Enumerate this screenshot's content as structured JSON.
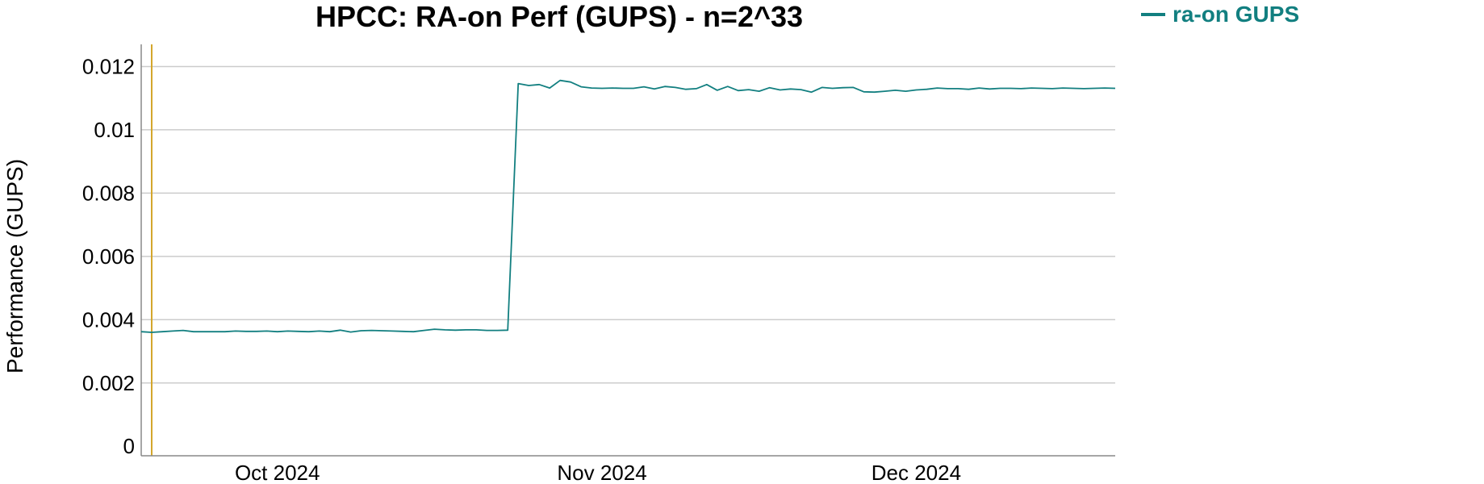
{
  "chart_data": {
    "type": "line",
    "title": "HPCC: RA-on Perf (GUPS) - n=2^33",
    "xlabel": "",
    "ylabel": "Performance (GUPS)",
    "xlim": [
      "2024-09-18",
      "2024-12-20"
    ],
    "ylim": [
      -0.0003,
      0.0127
    ],
    "yticks": [
      0,
      0.002,
      0.004,
      0.006,
      0.008,
      0.01,
      0.012
    ],
    "ytick_labels": [
      "0",
      "0.002",
      "0.004",
      "0.006",
      "0.008",
      "0.01",
      "0.012"
    ],
    "xticks": [
      "2024-10-01",
      "2024-11-01",
      "2024-12-01"
    ],
    "xtick_labels": [
      "Oct 2024",
      "Nov 2024",
      "Dec 2024"
    ],
    "grid": true,
    "legend": "top-right",
    "vertical_marker": {
      "x": "2024-09-19",
      "color": "#d4a62a"
    },
    "series": [
      {
        "name": "ra-on GUPS",
        "color": "#127f80",
        "x": [
          "2024-09-18",
          "2024-09-19",
          "2024-09-20",
          "2024-09-21",
          "2024-09-22",
          "2024-09-23",
          "2024-09-24",
          "2024-09-25",
          "2024-09-26",
          "2024-09-27",
          "2024-09-28",
          "2024-09-29",
          "2024-09-30",
          "2024-10-01",
          "2024-10-02",
          "2024-10-03",
          "2024-10-04",
          "2024-10-05",
          "2024-10-06",
          "2024-10-07",
          "2024-10-08",
          "2024-10-09",
          "2024-10-10",
          "2024-10-11",
          "2024-10-12",
          "2024-10-13",
          "2024-10-14",
          "2024-10-15",
          "2024-10-16",
          "2024-10-17",
          "2024-10-18",
          "2024-10-19",
          "2024-10-20",
          "2024-10-21",
          "2024-10-22",
          "2024-10-23",
          "2024-10-24",
          "2024-10-25",
          "2024-10-26",
          "2024-10-27",
          "2024-10-28",
          "2024-10-29",
          "2024-10-30",
          "2024-10-31",
          "2024-11-01",
          "2024-11-02",
          "2024-11-03",
          "2024-11-04",
          "2024-11-05",
          "2024-11-06",
          "2024-11-07",
          "2024-11-08",
          "2024-11-09",
          "2024-11-10",
          "2024-11-11",
          "2024-11-12",
          "2024-11-13",
          "2024-11-14",
          "2024-11-15",
          "2024-11-16",
          "2024-11-17",
          "2024-11-18",
          "2024-11-19",
          "2024-11-20",
          "2024-11-21",
          "2024-11-22",
          "2024-11-23",
          "2024-11-24",
          "2024-11-25",
          "2024-11-26",
          "2024-11-27",
          "2024-11-28",
          "2024-11-29",
          "2024-11-30",
          "2024-12-01",
          "2024-12-02",
          "2024-12-03",
          "2024-12-04",
          "2024-12-05",
          "2024-12-06",
          "2024-12-07",
          "2024-12-08",
          "2024-12-09",
          "2024-12-10",
          "2024-12-11",
          "2024-12-12",
          "2024-12-13",
          "2024-12-14",
          "2024-12-15",
          "2024-12-16",
          "2024-12-17",
          "2024-12-18",
          "2024-12-19",
          "2024-12-20"
        ],
        "values": [
          0.00362,
          0.0036,
          0.00362,
          0.00364,
          0.00366,
          0.00362,
          0.00362,
          0.00362,
          0.00362,
          0.00364,
          0.00363,
          0.00363,
          0.00364,
          0.00362,
          0.00364,
          0.00363,
          0.00362,
          0.00364,
          0.00362,
          0.00367,
          0.00361,
          0.00365,
          0.00366,
          0.00365,
          0.00364,
          0.00363,
          0.00362,
          0.00366,
          0.0037,
          0.00368,
          0.00367,
          0.00368,
          0.00368,
          0.00366,
          0.00366,
          0.00367,
          0.01146,
          0.0114,
          0.01143,
          0.01132,
          0.01156,
          0.01151,
          0.01136,
          0.01132,
          0.01131,
          0.01132,
          0.01131,
          0.01131,
          0.01136,
          0.01129,
          0.01137,
          0.01134,
          0.01128,
          0.0113,
          0.01143,
          0.01125,
          0.01137,
          0.01124,
          0.01127,
          0.01122,
          0.01133,
          0.01126,
          0.01129,
          0.01127,
          0.01119,
          0.01134,
          0.01131,
          0.01133,
          0.01134,
          0.0112,
          0.01119,
          0.01122,
          0.01125,
          0.01122,
          0.01126,
          0.01128,
          0.01132,
          0.0113,
          0.0113,
          0.01128,
          0.01132,
          0.01129,
          0.01131,
          0.01131,
          0.0113,
          0.01132,
          0.01131,
          0.0113,
          0.01132,
          0.01131,
          0.0113,
          0.01131,
          0.01132,
          0.01131
        ]
      }
    ]
  }
}
